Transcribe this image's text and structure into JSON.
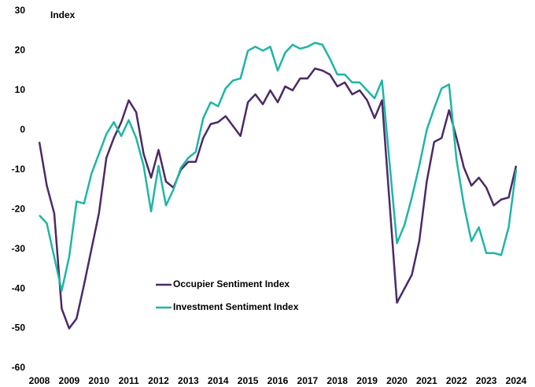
{
  "chart_data": {
    "type": "line",
    "y_axis_label": "Index",
    "x": [
      2008,
      2008.25,
      2008.5,
      2008.75,
      2009,
      2009.25,
      2009.5,
      2009.75,
      2010,
      2010.25,
      2010.5,
      2010.75,
      2011,
      2011.25,
      2011.5,
      2011.75,
      2012,
      2012.25,
      2012.5,
      2012.75,
      2013,
      2013.25,
      2013.5,
      2013.75,
      2014,
      2014.25,
      2014.5,
      2014.75,
      2015,
      2015.25,
      2015.5,
      2015.75,
      2016,
      2016.25,
      2016.5,
      2016.75,
      2017,
      2017.25,
      2017.5,
      2017.75,
      2018,
      2018.25,
      2018.5,
      2018.75,
      2019,
      2019.25,
      2019.5,
      2019.75,
      2020,
      2020.25,
      2020.5,
      2020.75,
      2021,
      2021.25,
      2021.5,
      2021.75,
      2022,
      2022.25,
      2022.5,
      2022.75,
      2023,
      2023.25,
      2023.5,
      2023.75,
      2024
    ],
    "series": [
      {
        "name": "Occupier Sentiment Index",
        "color": "#4b2a66",
        "values": [
          -3,
          -14,
          -21,
          -45,
          -50,
          -47.5,
          -39,
          -30,
          -21,
          -7,
          -2,
          2,
          7.5,
          4.5,
          -6,
          -12,
          -5,
          -13,
          -14.5,
          -10,
          -8,
          -8,
          -2,
          1.5,
          2,
          3.5,
          1,
          -1.5,
          7,
          9,
          6.5,
          10,
          7,
          11,
          10,
          13,
          13,
          15.5,
          15,
          14,
          11,
          12,
          9,
          10,
          7.5,
          3,
          7.5,
          -18,
          -43.5,
          -40,
          -36.5,
          -28,
          -13,
          -3,
          -2,
          5,
          -2,
          -9.5,
          -14,
          -12,
          -14.5,
          -19,
          -17.5,
          -17,
          -9
        ]
      },
      {
        "name": "Investment Sentiment Index",
        "color": "#1fb5a5",
        "values": [
          -21.5,
          -23.5,
          -32,
          -40.5,
          -32,
          -18,
          -18.5,
          -11,
          -6,
          -1,
          2,
          -1.5,
          2.5,
          -2,
          -9,
          -20.5,
          -9,
          -19,
          -15,
          -9.5,
          -7,
          -5.5,
          3,
          7,
          6,
          10.5,
          12.5,
          13,
          20,
          21,
          20,
          21,
          15,
          19.5,
          21.5,
          20.5,
          21,
          22,
          21.5,
          18,
          14,
          14,
          12,
          12,
          10,
          8,
          12.5,
          -8,
          -28.5,
          -24,
          -17,
          -9,
          0,
          5.5,
          10.5,
          11.5,
          -7.5,
          -19,
          -28,
          -24.5,
          -31,
          -31,
          -31.5,
          -24.5,
          -10
        ]
      }
    ],
    "xlim": [
      2008,
      2024
    ],
    "xticks": [
      2008,
      2009,
      2010,
      2011,
      2012,
      2013,
      2014,
      2015,
      2016,
      2017,
      2018,
      2019,
      2020,
      2021,
      2022,
      2023,
      2024
    ],
    "ylim": [
      -60,
      30
    ],
    "yticks": [
      -60,
      -50,
      -40,
      -30,
      -20,
      -10,
      0,
      10,
      20,
      30
    ],
    "grid": false
  }
}
